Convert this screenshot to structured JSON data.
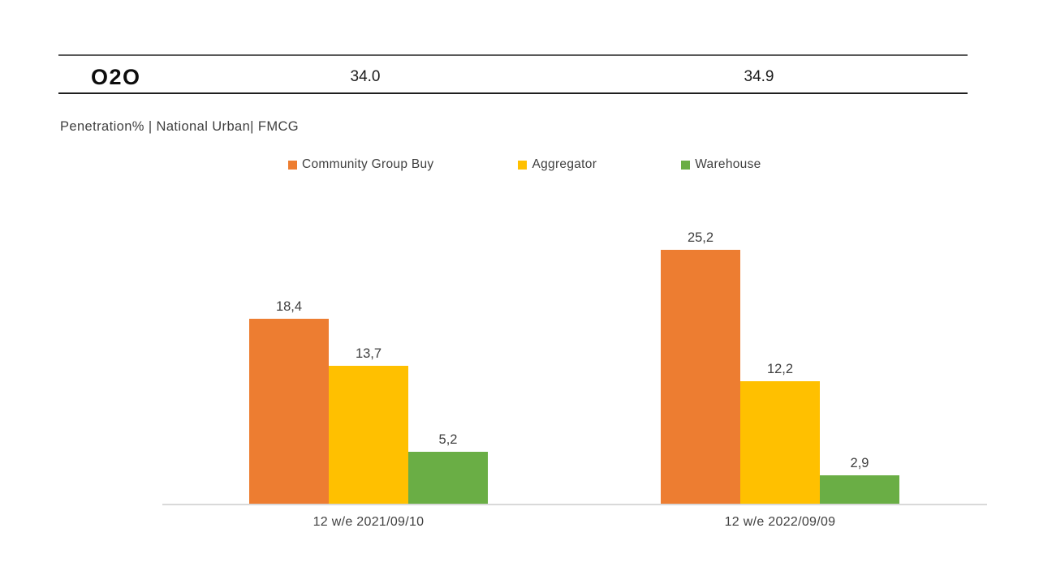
{
  "header": {
    "title": "O2O",
    "total_left": "34.0",
    "total_right": "34.9"
  },
  "subtitle": "Penetration% | National Urban| FMCG",
  "chart_data": {
    "type": "bar",
    "title": "O2O Penetration% | National Urban | FMCG",
    "categories": [
      "12 w/e 2021/09/10",
      "12 w/e 2022/09/09"
    ],
    "series": [
      {
        "name": "Community Group Buy",
        "color": "#ED7D31",
        "values": [
          18.4,
          25.2
        ],
        "labels": [
          "18,4",
          "25,2"
        ]
      },
      {
        "name": "Aggregator",
        "color": "#FFC000",
        "values": [
          13.7,
          12.2
        ],
        "labels": [
          "13,7",
          "12,2"
        ]
      },
      {
        "name": "Warehouse",
        "color": "#6AAE45",
        "values": [
          5.2,
          2.9
        ],
        "labels": [
          "5,2",
          "2,9"
        ]
      }
    ],
    "group_totals": [
      "34.0",
      "34.9"
    ],
    "xlabel": "",
    "ylabel": "Penetration %",
    "ylim": [
      0,
      28
    ],
    "grid": false,
    "legend_position": "top",
    "value_format": "comma-decimal",
    "axis_line_color": "#D9D9D9",
    "label_color": "#404040"
  }
}
